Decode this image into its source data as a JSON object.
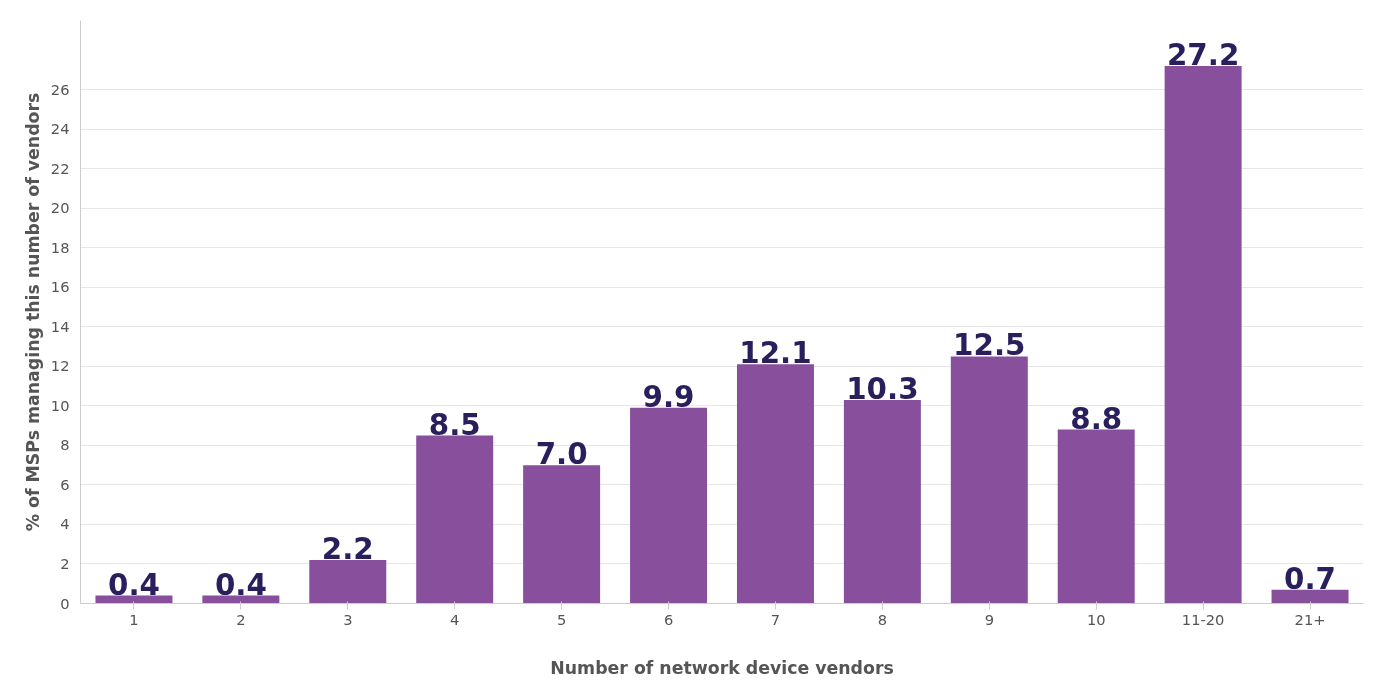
{
  "chart_data": {
    "type": "bar",
    "xlabel": "Number of network device vendors",
    "ylabel": "% of MSPs managing this number of vendors",
    "categories": [
      "1",
      "2",
      "3",
      "4",
      "5",
      "6",
      "7",
      "8",
      "9",
      "10",
      "11-20",
      "21+"
    ],
    "values": [
      0.4,
      0.4,
      2.2,
      8.5,
      7.0,
      9.9,
      12.1,
      10.3,
      12.5,
      8.8,
      27.2,
      0.7
    ],
    "value_labels": [
      "0.4",
      "0.4",
      "2.2",
      "8.5",
      "7.0",
      "9.9",
      "12.1",
      "10.3",
      "12.5",
      "8.8",
      "27.2",
      "0.7"
    ],
    "color": "#874f9c",
    "ylim": [
      0,
      29.5
    ],
    "yticks": [
      0,
      2,
      4,
      6,
      8,
      10,
      12,
      14,
      16,
      18,
      20,
      22,
      24,
      26
    ],
    "grid": "y"
  }
}
